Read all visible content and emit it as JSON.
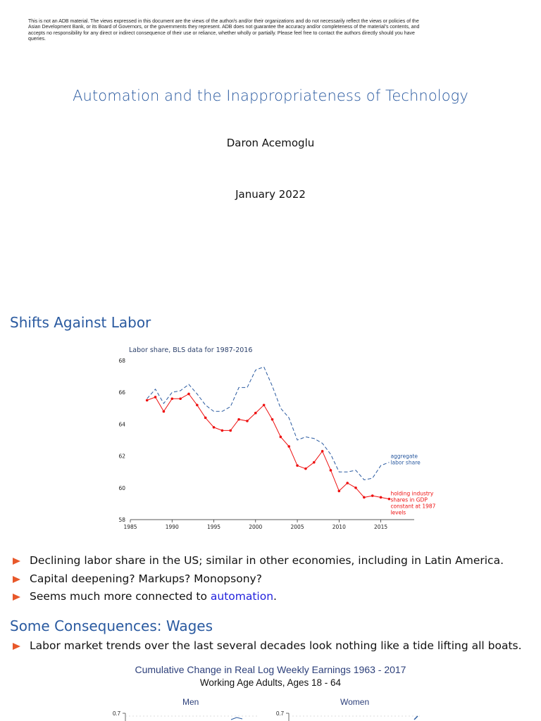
{
  "disclaimer": "This is not an ADB material. The views expressed in this document are the views of the author/s and/or their organizations and do not necessarily reflect the views or policies of the Asian Development Bank, or its Board of Governors, or the governments they represent. ADB does not guarantee the accuracy and/or completeness of the material's contents, and accepts no responsibility for any direct or indirect consequence of their use or reliance, whether wholly or partially. Please feel free to contact the authors directly should you have queries.",
  "title_slide": {
    "title": "Automation and the Inappropriateness of Technology",
    "author": "Daron Acemoglu",
    "date": "January 2022"
  },
  "slide2": {
    "heading": "Shifts Against Labor",
    "bullets": [
      {
        "text": "Declining labor share in the US; similar in other economies, including in Latin America."
      },
      {
        "text": "Capital deepening? Markups? Monopsony?"
      },
      {
        "text_before": "Seems much more connected to ",
        "link": "automation",
        "text_after": "."
      }
    ]
  },
  "slide3": {
    "heading": "Some Consequences: Wages",
    "bullets": [
      {
        "text": "Labor market trends over the last several decades look nothing like a tide lifting all boats."
      }
    ],
    "figure": {
      "title": "Cumulative Change in Real Log Weekly Earnings 1963 - 2017",
      "subtitle": "Working Age Adults, Ages 18 - 64",
      "panels": [
        "Men",
        "Women"
      ],
      "y_tick": "0.7"
    }
  },
  "chart_data": {
    "type": "line",
    "title": "Labor share, BLS data for 1987-2016",
    "xlim": [
      1985,
      2019
    ],
    "ylim": [
      58,
      68
    ],
    "xticks": [
      "1985",
      "1990",
      "1995",
      "2000",
      "2005",
      "2010",
      "2015"
    ],
    "yticks": [
      "58",
      "60",
      "62",
      "64",
      "66",
      "68"
    ],
    "grid": false,
    "series": [
      {
        "name": "aggregate labor share",
        "label_lines": [
          "aggregate",
          "labor share"
        ],
        "style": "dashed",
        "color": "#2a5aa0",
        "x": [
          1987,
          1988,
          1989,
          1990,
          1991,
          1992,
          1993,
          1994,
          1995,
          1996,
          1997,
          1998,
          1999,
          2000,
          2001,
          2002,
          2003,
          2004,
          2005,
          2006,
          2007,
          2008,
          2009,
          2010,
          2011,
          2012,
          2013,
          2014,
          2015,
          2016
        ],
        "y": [
          65.6,
          66.2,
          65.3,
          66.0,
          66.1,
          66.5,
          65.9,
          65.2,
          64.8,
          64.8,
          65.1,
          66.3,
          66.3,
          67.4,
          67.6,
          66.4,
          65.0,
          64.4,
          63.0,
          63.2,
          63.1,
          62.8,
          62.1,
          61.0,
          61.0,
          61.1,
          60.5,
          60.6,
          61.4,
          61.6
        ]
      },
      {
        "name": "holding industry shares in GDP constant at 1987 levels",
        "label_lines": [
          "holding industry",
          "shares in GDP",
          "constant at 1987",
          "levels"
        ],
        "style": "solid-markers",
        "color": "#ee1111",
        "x": [
          1987,
          1988,
          1989,
          1990,
          1991,
          1992,
          1993,
          1994,
          1995,
          1996,
          1997,
          1998,
          1999,
          2000,
          2001,
          2002,
          2003,
          2004,
          2005,
          2006,
          2007,
          2008,
          2009,
          2010,
          2011,
          2012,
          2013,
          2014,
          2015,
          2016
        ],
        "y": [
          65.5,
          65.7,
          64.8,
          65.6,
          65.6,
          65.9,
          65.2,
          64.4,
          63.8,
          63.6,
          63.6,
          64.3,
          64.2,
          64.7,
          65.2,
          64.3,
          63.2,
          62.6,
          61.4,
          61.2,
          61.6,
          62.3,
          61.1,
          59.8,
          60.3,
          60.0,
          59.4,
          59.5,
          59.4,
          59.3
        ]
      }
    ]
  },
  "colors": {
    "heading": "#2a5aa0",
    "bullet": "#e8582a",
    "link": "#2222dd"
  }
}
